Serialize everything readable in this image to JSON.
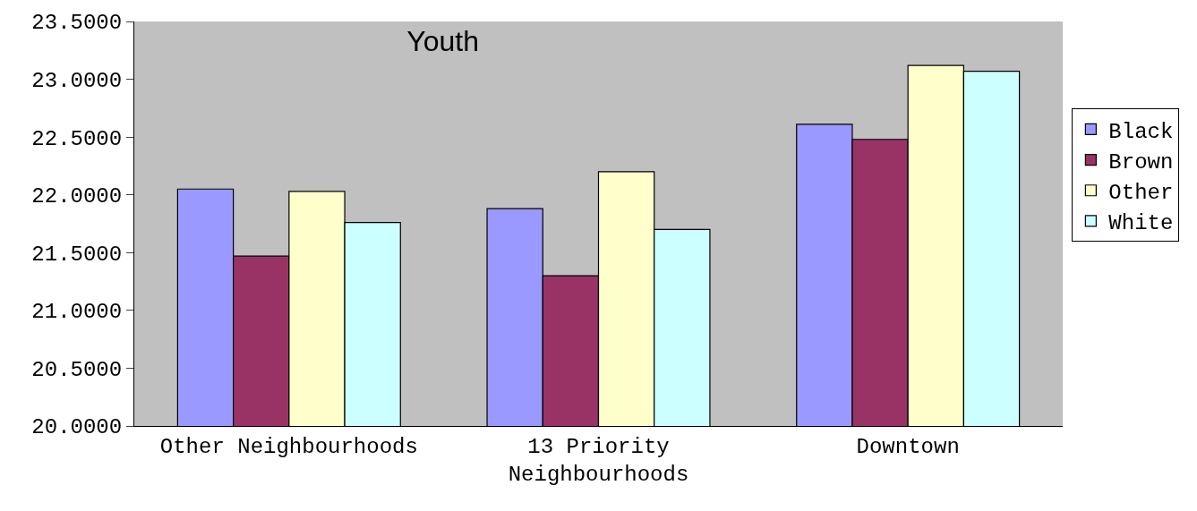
{
  "chart_data": {
    "type": "bar",
    "title": "Youth",
    "categories": [
      "Other Neighbourhoods",
      "13 Priority Neighbourhoods",
      "Downtown"
    ],
    "series": [
      {
        "name": "Black",
        "color": "#9999ff",
        "values": [
          22.05,
          21.88,
          22.61
        ]
      },
      {
        "name": "Brown",
        "color": "#993366",
        "values": [
          21.47,
          21.3,
          22.48
        ]
      },
      {
        "name": "Other",
        "color": "#ffffcc",
        "values": [
          22.03,
          22.2,
          23.12
        ]
      },
      {
        "name": "White",
        "color": "#ccffff",
        "values": [
          21.76,
          21.7,
          23.07
        ]
      }
    ],
    "ylim": [
      20.0,
      23.5
    ],
    "yticks": [
      {
        "value": 20.0,
        "label": "20.0000"
      },
      {
        "value": 20.5,
        "label": "20.5000"
      },
      {
        "value": 21.0,
        "label": "21.0000"
      },
      {
        "value": 21.5,
        "label": "21.5000"
      },
      {
        "value": 22.0,
        "label": "22.0000"
      },
      {
        "value": 22.5,
        "label": "22.5000"
      },
      {
        "value": 23.0,
        "label": "23.0000"
      },
      {
        "value": 23.5,
        "label": "23.5000"
      }
    ],
    "grid": false,
    "legend": "right"
  }
}
